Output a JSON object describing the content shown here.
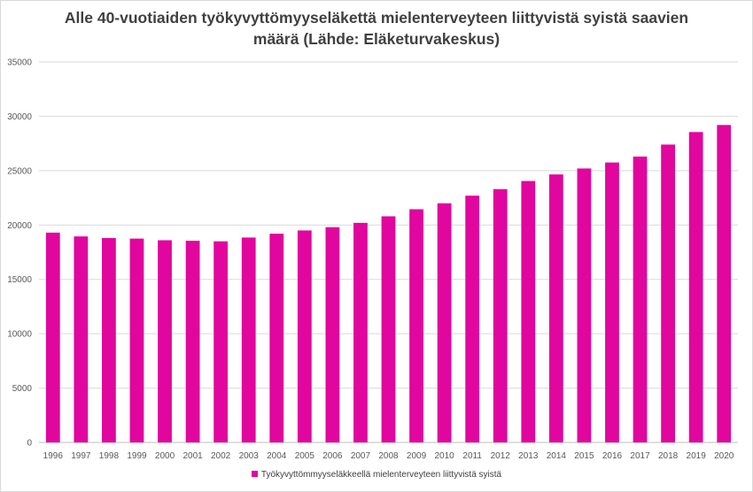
{
  "chart_data": {
    "type": "bar",
    "title": "Alle 40-vuotiaiden työkyvyttömyyseläkettä mielenterveyteen liittyvistä syistä saavien määrä (Lähde: Eläketurvakeskus)",
    "categories": [
      "1996",
      "1997",
      "1998",
      "1999",
      "2000",
      "2001",
      "2002",
      "2003",
      "2004",
      "2005",
      "2006",
      "2007",
      "2008",
      "2009",
      "2010",
      "2011",
      "2012",
      "2013",
      "2014",
      "2015",
      "2016",
      "2017",
      "2018",
      "2019",
      "2020"
    ],
    "series": [
      {
        "name": "Työkyvyttömmyyseläkkeellä mielenterveyteen liittyvistä syistä",
        "values": [
          19300,
          18950,
          18800,
          18750,
          18600,
          18550,
          18500,
          18850,
          19200,
          19500,
          19800,
          20200,
          20800,
          21450,
          22000,
          22700,
          23300,
          24050,
          24650,
          25200,
          25750,
          26300,
          27400,
          28550,
          29200
        ]
      }
    ],
    "ylim": [
      0,
      35000
    ],
    "yticks": [
      0,
      5000,
      10000,
      15000,
      20000,
      25000,
      30000,
      35000
    ],
    "grid": true,
    "legend_position": "bottom",
    "bar_color": "#e0069e",
    "xlabel": "",
    "ylabel": ""
  }
}
